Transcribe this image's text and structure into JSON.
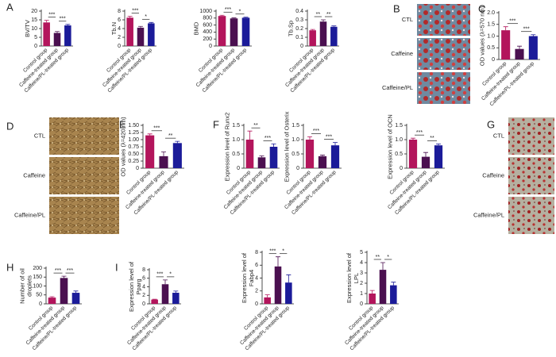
{
  "panel_labels": [
    "A",
    "B",
    "C",
    "D",
    "E",
    "F",
    "G",
    "H",
    "I"
  ],
  "image_panels": [
    {
      "rows": [
        "CTL",
        "Caffeine",
        "Caffeine/PL"
      ]
    },
    {
      "rows": [
        "CTL",
        "Caffeine",
        "Caffeine/PL"
      ]
    },
    {
      "rows": [
        "CTL",
        "Caffeine",
        "Caffeine/PL"
      ]
    }
  ],
  "chart_data": [
    {
      "type": "bar",
      "ylabel": [
        "BV/TV"
      ],
      "categories": [
        "Control group",
        "Caffeine-treated group",
        "Caffeine/PL-treated group"
      ],
      "values": [
        13.5,
        7.5,
        11.8
      ],
      "errors": [
        1.2,
        0.8,
        0.6
      ],
      "colors": [
        "#b3155c",
        "#4b1050",
        "#1b1b99"
      ],
      "ylim": [
        0,
        20
      ],
      "yticks": [
        0,
        5,
        10,
        15,
        20
      ],
      "annotations": [
        "***",
        "***"
      ]
    },
    {
      "type": "bar",
      "ylabel": [
        "Tb.N"
      ],
      "categories": [
        "Control group",
        "Caffeine-treated group",
        "Caffeine/PL-treated group"
      ],
      "values": [
        6.5,
        4.2,
        5.2
      ],
      "errors": [
        0.3,
        0.3,
        0.2
      ],
      "colors": [
        "#b3155c",
        "#4b1050",
        "#1b1b99"
      ],
      "ylim": [
        0,
        8
      ],
      "yticks": [
        0,
        2,
        4,
        6,
        8
      ],
      "annotations": [
        "***",
        "*"
      ]
    },
    {
      "type": "bar",
      "ylabel": [
        "BMD"
      ],
      "categories": [
        "Control group",
        "Caffeine-treated group",
        "Caffeine/PL-treated group"
      ],
      "values": [
        860,
        790,
        810
      ],
      "errors": [
        20,
        15,
        15
      ],
      "colors": [
        "#b3155c",
        "#4b1050",
        "#1b1b99"
      ],
      "ylim": [
        0,
        1000
      ],
      "yticks": [
        0,
        200,
        400,
        600,
        800,
        1000
      ],
      "annotations": [
        "***",
        "*"
      ]
    },
    {
      "type": "bar",
      "ylabel": [
        "Tb.Sp"
      ],
      "categories": [
        "Control group",
        "Caffeine-treated group",
        "Caffeine/PL-treated group"
      ],
      "values": [
        0.18,
        0.28,
        0.22
      ],
      "errors": [
        0.01,
        0.02,
        0.01
      ],
      "colors": [
        "#b3155c",
        "#4b1050",
        "#1b1b99"
      ],
      "ylim": [
        0,
        0.4
      ],
      "yticks": [
        0,
        0.1,
        0.2,
        0.3,
        0.4
      ],
      "annotations": [
        "**",
        "**"
      ]
    },
    {
      "type": "bar",
      "ylabel": [
        "OD values (λ=570 nm)"
      ],
      "categories": [
        "Control group",
        "Caffeine-treated group",
        "Caffeine/PL-treated group"
      ],
      "values": [
        1.25,
        0.45,
        1.0
      ],
      "errors": [
        0.15,
        0.12,
        0.06
      ],
      "colors": [
        "#b3155c",
        "#4b1050",
        "#1b1b99"
      ],
      "ylim": [
        0,
        2.0
      ],
      "yticks": [
        0,
        0.5,
        {
          "value": 1,
          "label": "1.0"
        },
        1.5,
        {
          "value": 2,
          "label": "2.0"
        }
      ],
      "annotations": [
        "***",
        "***"
      ]
    },
    {
      "type": "bar",
      "ylabel": [
        "OD values (λ=420 nm)"
      ],
      "categories": [
        "Control group",
        "Caffeine-treated group",
        "Caffeine/PL-treated group"
      ],
      "values": [
        1.15,
        0.42,
        0.88
      ],
      "errors": [
        0.05,
        0.15,
        0.06
      ],
      "colors": [
        "#b3155c",
        "#4b1050",
        "#1b1b99"
      ],
      "ylim": [
        0,
        1.5
      ],
      "yticks": [
        0,
        0.25,
        {
          "value": 0.5,
          "label": "0.50"
        },
        0.75,
        {
          "value": 1,
          "label": "1.00"
        },
        1.25,
        {
          "value": 1.5,
          "label": "1.50"
        }
      ],
      "annotations": [
        "***",
        "**"
      ]
    },
    {
      "type": "bar",
      "ylabel": [
        "Expression level of Runx2"
      ],
      "categories": [
        "Control group",
        "Caffeine-treated group",
        "Caffeine/PL-treated group"
      ],
      "values": [
        1.0,
        0.38,
        0.75
      ],
      "errors": [
        0.3,
        0.05,
        0.1
      ],
      "colors": [
        "#b3155c",
        "#4b1050",
        "#1b1b99"
      ],
      "ylim": [
        0,
        1.5
      ],
      "yticks": [
        0,
        0.5,
        {
          "value": 1,
          "label": "1.0"
        },
        1.5
      ],
      "annotations": [
        "**",
        "***"
      ]
    },
    {
      "type": "bar",
      "ylabel": [
        "Expression level of Osterix"
      ],
      "categories": [
        "Control group",
        "Caffeine-treated group",
        "Caffeine/PL-treated group"
      ],
      "values": [
        1.0,
        0.42,
        0.8
      ],
      "errors": [
        0.1,
        0.04,
        0.1
      ],
      "colors": [
        "#b3155c",
        "#4b1050",
        "#1b1b99"
      ],
      "ylim": [
        0,
        1.5
      ],
      "yticks": [
        0,
        0.5,
        {
          "value": 1,
          "label": "1.0"
        },
        1.5
      ],
      "annotations": [
        "***",
        "***"
      ]
    },
    {
      "type": "bar",
      "ylabel": [
        "Expression level of OCN"
      ],
      "categories": [
        "Control group",
        "Caffeine-treated group",
        "Caffeine/PL-treated group"
      ],
      "values": [
        1.0,
        0.4,
        0.8
      ],
      "errors": [
        0.05,
        0.15,
        0.05
      ],
      "colors": [
        "#b3155c",
        "#4b1050",
        "#1b1b99"
      ],
      "ylim": [
        0,
        1.5
      ],
      "yticks": [
        0,
        0.5,
        {
          "value": 1,
          "label": "1.0"
        },
        1.5
      ],
      "annotations": [
        "***",
        "**"
      ]
    },
    {
      "type": "bar",
      "ylabel": [
        "Number of oil",
        "droplets"
      ],
      "categories": [
        "Control group",
        "Caffeine-treated group",
        "Caffeine/PL-treated group"
      ],
      "values": [
        35,
        145,
        62
      ],
      "errors": [
        5,
        10,
        10
      ],
      "colors": [
        "#b3155c",
        "#4b1050",
        "#1b1b99"
      ],
      "ylim": [
        0,
        200
      ],
      "yticks": [
        0,
        50,
        100,
        150,
        200
      ],
      "annotations": [
        "***",
        "***"
      ]
    },
    {
      "type": "bar",
      "ylabel": [
        "Expression level of",
        "Pparg"
      ],
      "categories": [
        "Control group",
        "Caffeine-treated group",
        "Caffeine/PL-treated group"
      ],
      "values": [
        1,
        4.6,
        2.6
      ],
      "errors": [
        0.1,
        1.0,
        0.4
      ],
      "colors": [
        "#b3155c",
        "#4b1050",
        "#1b1b99"
      ],
      "ylim": [
        0,
        8
      ],
      "yticks": [
        0,
        2,
        4,
        6,
        8
      ],
      "annotations": [
        "***",
        "*"
      ]
    },
    {
      "type": "bar",
      "ylabel": [
        "Expression level of",
        "Fabp4"
      ],
      "categories": [
        "Control group",
        "Caffeine-treated group",
        "Caffeine/PL-treated group"
      ],
      "values": [
        1,
        5.8,
        3.3
      ],
      "errors": [
        0.4,
        1.5,
        1.2
      ],
      "colors": [
        "#b3155c",
        "#4b1050",
        "#1b1b99"
      ],
      "ylim": [
        0,
        8
      ],
      "yticks": [
        0,
        2,
        4,
        6,
        8
      ],
      "annotations": [
        "***",
        "*"
      ]
    },
    {
      "type": "bar",
      "ylabel": [
        "Expression level of",
        "LPL"
      ],
      "categories": [
        "Control group",
        "Caffeine-treated group",
        "Caffeine/PL-treated group"
      ],
      "values": [
        1,
        3.3,
        1.8
      ],
      "errors": [
        0.3,
        0.7,
        0.3
      ],
      "colors": [
        "#b3155c",
        "#4b1050",
        "#1b1b99"
      ],
      "ylim": [
        0,
        5
      ],
      "yticks": [
        0,
        1,
        2,
        3,
        4,
        5
      ],
      "annotations": [
        "**",
        "*"
      ]
    }
  ]
}
